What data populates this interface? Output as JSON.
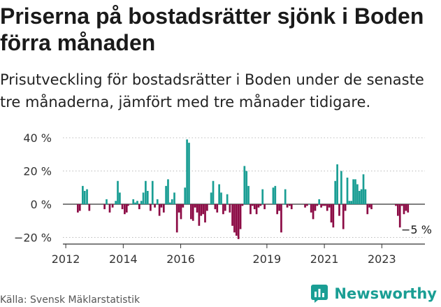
{
  "header": {
    "title": "Priserna på bostadsrätter sjönk i Boden förra månaden",
    "subtitle": "Prisutveckling för bostadsrätter i Boden under de senaste tre månaderna, jämfört med tre månader tidigare."
  },
  "footer": {
    "source": "Källa: Svensk Mäklarstatistik",
    "brand": "Newsworthy"
  },
  "colors": {
    "positive": "#1a9e94",
    "negative": "#8c0b45",
    "axis": "#333333",
    "grid": "#bbbbbb"
  },
  "chart_data": {
    "type": "bar",
    "title": "Priserna på bostadsrätter sjönk i Boden förra månaden",
    "xlabel": "",
    "ylabel": "",
    "ylim": [
      -23,
      42
    ],
    "yticks": [
      40,
      20,
      0,
      -20
    ],
    "ytick_labels": [
      "40 %",
      "20 %",
      "0 %",
      "−20 %"
    ],
    "xticks": [
      2012,
      2014,
      2016,
      2019,
      2021,
      2023
    ],
    "xtick_labels": [
      "2012",
      "2014",
      "2016",
      "2019",
      "2021",
      "2023"
    ],
    "x_range": [
      2011.9,
      2024.5
    ],
    "annotation": {
      "text": "−5 %",
      "x": 2024.11,
      "y": -5
    },
    "series": [
      {
        "name": "Prisutveckling",
        "x": [
          2012.42,
          2012.49,
          2012.59,
          2012.66,
          2012.74,
          2012.82,
          2013.35,
          2013.42,
          2013.53,
          2013.63,
          2013.74,
          2013.81,
          2013.88,
          2013.97,
          2014.05,
          2014.12,
          2014.17,
          2014.35,
          2014.42,
          2014.49,
          2014.56,
          2014.63,
          2014.7,
          2014.78,
          2014.85,
          2014.95,
          2015.02,
          2015.1,
          2015.19,
          2015.26,
          2015.33,
          2015.41,
          2015.49,
          2015.56,
          2015.63,
          2015.7,
          2015.78,
          2015.87,
          2015.94,
          2016.01,
          2016.08,
          2016.15,
          2016.22,
          2016.29,
          2016.36,
          2016.43,
          2016.5,
          2016.57,
          2016.64,
          2016.71,
          2016.78,
          2016.85,
          2016.92,
          2017.06,
          2017.13,
          2017.2,
          2017.27,
          2017.34,
          2017.41,
          2017.48,
          2017.55,
          2017.62,
          2017.71,
          2017.8,
          2017.87,
          2017.94,
          2018.01,
          2018.08,
          2018.15,
          2018.22,
          2018.29,
          2018.36,
          2018.43,
          2018.5,
          2018.57,
          2018.64,
          2018.71,
          2018.78,
          2018.85,
          2018.92,
          2019.22,
          2019.29,
          2019.36,
          2019.43,
          2019.5,
          2019.57,
          2019.64,
          2019.71,
          2019.79,
          2019.86,
          2020.33,
          2020.4,
          2020.47,
          2020.54,
          2020.61,
          2020.68,
          2020.75,
          2020.82,
          2020.89,
          2020.96,
          2021.03,
          2021.1,
          2021.17,
          2021.24,
          2021.31,
          2021.38,
          2021.45,
          2021.52,
          2021.59,
          2021.66,
          2021.73,
          2021.8,
          2021.87,
          2021.94,
          2022.01,
          2022.08,
          2022.15,
          2022.22,
          2022.29,
          2022.36,
          2022.43,
          2022.5,
          2022.57,
          2022.64,
          2023.49,
          2023.56,
          2023.63,
          2023.7,
          2023.77,
          2023.84,
          2023.91
        ],
        "values": [
          -5,
          -4,
          11,
          8,
          9,
          -4,
          -3,
          3,
          -5,
          -2,
          2,
          14,
          7,
          -3,
          -6,
          -5,
          -1,
          3,
          1,
          2,
          -3,
          2,
          7,
          14,
          8,
          -4,
          14,
          -2,
          3,
          -7,
          -2,
          -5,
          11,
          15,
          1,
          3,
          7,
          -17,
          -5,
          -9,
          -2,
          10,
          39,
          37,
          -9,
          -10,
          -2,
          -5,
          -13,
          -7,
          -6,
          -11,
          -4,
          7,
          14,
          -3,
          -5,
          12,
          7,
          -6,
          -4,
          6,
          -5,
          -13,
          -17,
          -19,
          -21,
          -15,
          -1,
          23,
          20,
          11,
          -6,
          -1,
          -3,
          -6,
          -2,
          -1,
          9,
          -3,
          10,
          11,
          -6,
          -4,
          -17,
          0,
          9,
          -2,
          -1,
          -3,
          -2,
          -1,
          0,
          -5,
          -9,
          -4,
          -1,
          3,
          -2,
          -1,
          -1,
          -4,
          -2,
          -11,
          -14,
          14,
          24,
          -7,
          20,
          -15,
          -4,
          16,
          2,
          2,
          15,
          15,
          12,
          8,
          9,
          18,
          9,
          -6,
          -2,
          -3,
          -1,
          -7,
          -14,
          -1,
          -6,
          -4,
          -5
        ]
      }
    ]
  }
}
